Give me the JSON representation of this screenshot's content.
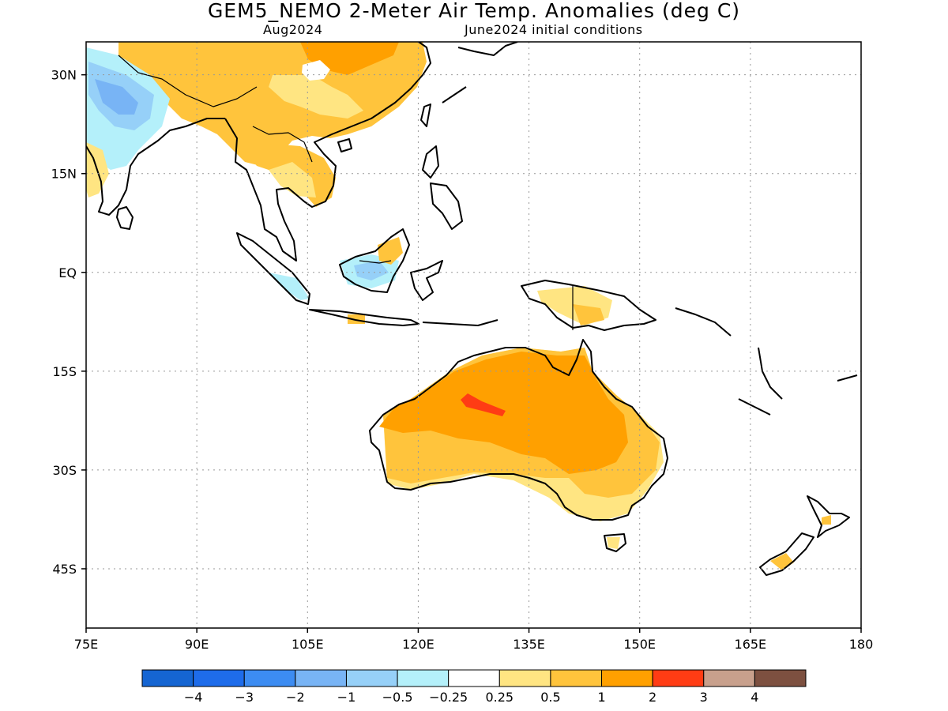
{
  "header": {
    "title": "GEM5_NEMO 2-Meter Air Temp. Anomalies (deg C)",
    "valid_month": "Aug2024",
    "init": "June2024 initial conditions"
  },
  "map": {
    "lon_range": [
      75,
      180
    ],
    "lat_range": [
      -54,
      35
    ],
    "lon_ticks": [
      {
        "value": 75,
        "label": "75E"
      },
      {
        "value": 90,
        "label": "90E"
      },
      {
        "value": 105,
        "label": "105E"
      },
      {
        "value": 120,
        "label": "120E"
      },
      {
        "value": 135,
        "label": "135E"
      },
      {
        "value": 150,
        "label": "150E"
      },
      {
        "value": 165,
        "label": "165E"
      },
      {
        "value": 180,
        "label": "180"
      }
    ],
    "lat_ticks": [
      {
        "value": 30,
        "label": "30N"
      },
      {
        "value": 15,
        "label": "15N"
      },
      {
        "value": 0,
        "label": "EQ"
      },
      {
        "value": -15,
        "label": "15S"
      },
      {
        "value": -30,
        "label": "30S"
      },
      {
        "value": -45,
        "label": "45S"
      }
    ],
    "grid": true
  },
  "colorbar": {
    "colors": [
      "#1565d2",
      "#1e6cea",
      "#3c8cf2",
      "#78b4f5",
      "#96d0f8",
      "#b4f0fa",
      "#ffffff",
      "#ffe582",
      "#ffc43c",
      "#ffa000",
      "#ff3c14",
      "#c8a08c",
      "#7d5040"
    ],
    "labels": [
      "−4",
      "−3",
      "−2",
      "−1",
      "−0.5",
      "−0.25",
      "0.25",
      "0.5",
      "1",
      "2",
      "3",
      "4"
    ]
  },
  "anomaly_colors": {
    "cool_strong": "#78b4f5",
    "cool_weak": "#96d0f8",
    "cool_light": "#b4f0fa",
    "warm_light": "#ffe582",
    "warm_mid": "#ffc43c",
    "warm_strong": "#ffa000",
    "hot": "#ff3c14"
  }
}
